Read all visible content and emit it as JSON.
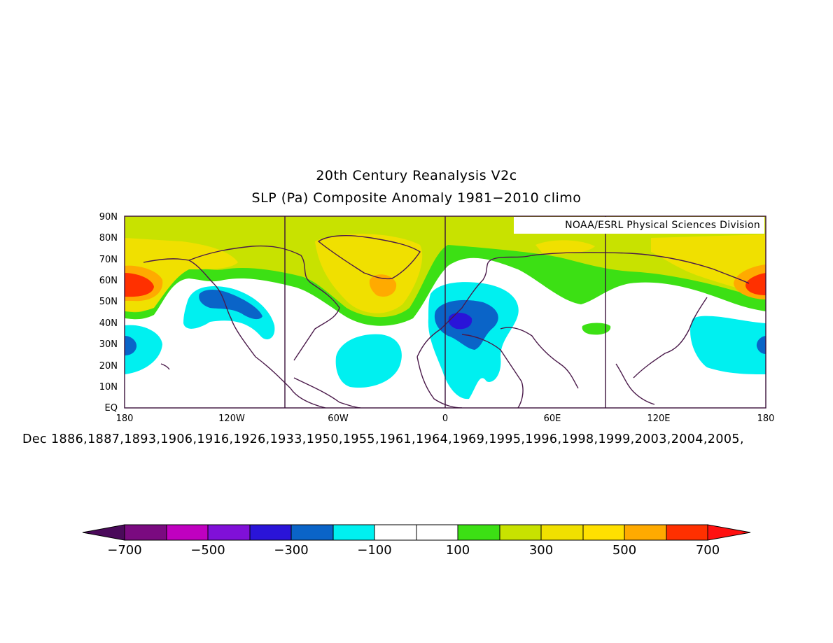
{
  "title": "20th Century Reanalysis V2c",
  "subtitle": "SLP (Pa) Composite Anomaly 1981−2010 climo",
  "credit": "NOAA/ESRL Physical Sciences Division",
  "dates_caption": "Dec 1886,1887,1893,1906,1916,1926,1933,1950,1955,1961,1964,1969,1995,1996,1998,1999,2003,2004,2005,",
  "map": {
    "lon_range": [
      -180,
      180
    ],
    "lat_range": [
      0,
      90
    ],
    "lat_labels": [
      "90N",
      "80N",
      "70N",
      "60N",
      "50N",
      "40N",
      "30N",
      "20N",
      "10N",
      "EQ"
    ],
    "lon_labels": [
      "180",
      "120W",
      "60W",
      "0",
      "60E",
      "120E",
      "180"
    ],
    "grid_lines_lon": [
      -90,
      0,
      90
    ]
  },
  "colorbar": {
    "labels": [
      "−700",
      "−500",
      "−300",
      "−100",
      "100",
      "300",
      "500",
      "700"
    ],
    "colors": {
      "lt_minus700": "#4a0a5a",
      "minus700_minus600": "#7a0a80",
      "minus600_minus500": "#c000c0",
      "minus500_minus400": "#8010d8",
      "minus400_minus300": "#2a14d8",
      "minus300_minus200": "#0a64c8",
      "minus200_minus100": "#00f0f0",
      "minus100_100": "#ffffff",
      "100_200": "#3ce014",
      "200_300": "#c8e200",
      "300_400": "#f0e000",
      "400_500": "#ffe000",
      "500_600": "#ffaa00",
      "600_700": "#ff3000",
      "gt_700": "#ff1010"
    }
  }
}
